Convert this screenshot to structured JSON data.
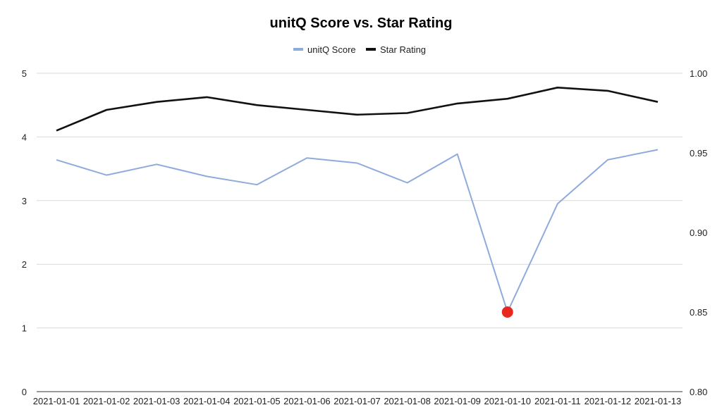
{
  "chart_data": {
    "type": "line",
    "title": "unitQ Score vs. Star Rating",
    "legend_position": "top-center",
    "grid": true,
    "categories": [
      "2021-01-01",
      "2021-01-02",
      "2021-01-03",
      "2021-01-04",
      "2021-01-05",
      "2021-01-06",
      "2021-01-07",
      "2021-01-08",
      "2021-01-09",
      "2021-01-10",
      "2021-01-11",
      "2021-01-12",
      "2021-01-13"
    ],
    "y_left": {
      "min": 0,
      "max": 5,
      "ticks": [
        "0",
        "1",
        "2",
        "3",
        "4",
        "5"
      ],
      "tick_values": [
        0,
        1,
        2,
        3,
        4,
        5
      ]
    },
    "y_right": {
      "min": 0.8,
      "max": 1.0,
      "ticks": [
        "0.80",
        "0.85",
        "0.90",
        "0.95",
        "1.00"
      ],
      "tick_values": [
        0.8,
        0.85,
        0.9,
        0.95,
        1.0
      ]
    },
    "series": [
      {
        "name": "unitQ Score",
        "axis": "left",
        "color": "#8faadc",
        "values": [
          3.64,
          3.4,
          3.57,
          3.38,
          3.25,
          3.67,
          3.59,
          3.28,
          3.73,
          1.25,
          2.95,
          3.64,
          3.8
        ],
        "highlight_index": 9,
        "highlight_color": "#e8281e"
      },
      {
        "name": "Star Rating",
        "axis": "right",
        "color": "#111111",
        "values": [
          0.964,
          0.977,
          0.982,
          0.985,
          0.98,
          0.977,
          0.974,
          0.975,
          0.981,
          0.984,
          0.991,
          0.989,
          0.982
        ]
      }
    ]
  }
}
